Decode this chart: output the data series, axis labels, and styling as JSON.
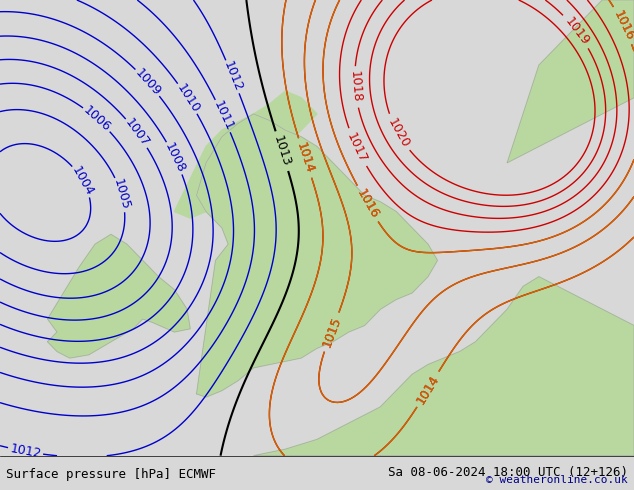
{
  "title_left": "Surface pressure [hPa] ECMWF",
  "title_right": "Sa 08-06-2024 18:00 UTC (12+126)",
  "copyright": "© weatheronline.co.uk",
  "bg_color": "#d8d8d8",
  "land_color": "#b8d8a0",
  "sea_color": "#d8d8d8",
  "blue_isobar_color": "#0000cc",
  "black_isobar_color": "#000000",
  "red_isobar_color": "#cc0000",
  "orange_isobar_color": "#cc6600",
  "label_fontsize": 9,
  "title_fontsize": 9,
  "figsize": [
    6.34,
    4.9
  ],
  "dpi": 100
}
